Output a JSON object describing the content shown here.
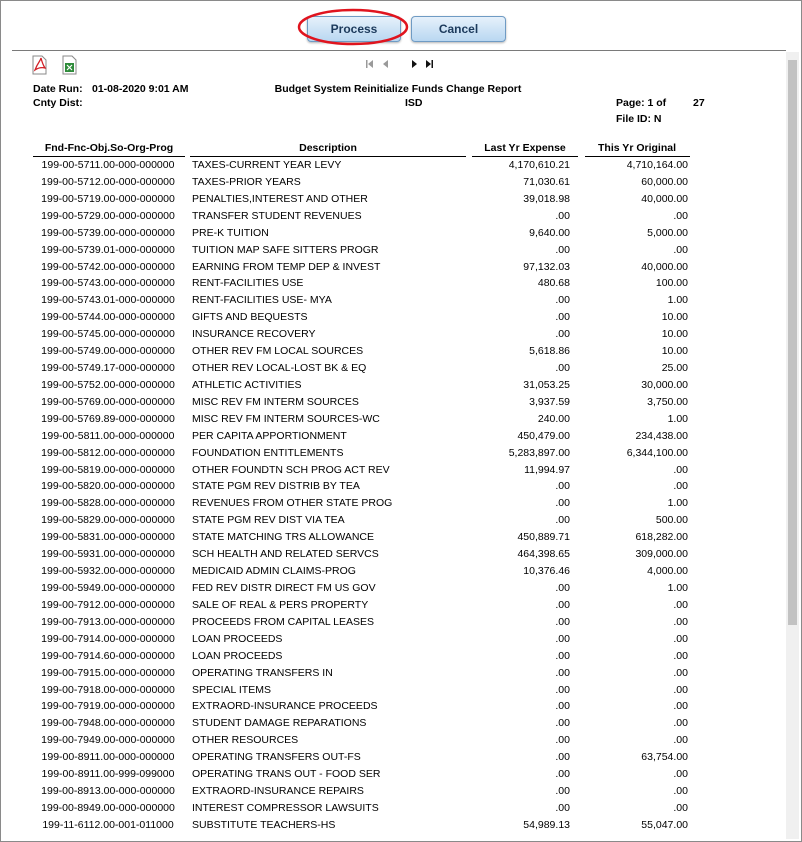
{
  "buttons": {
    "process": "Process",
    "cancel": "Cancel"
  },
  "report": {
    "date_run_label": "Date Run:",
    "date_run": "01-08-2020 9:01 AM",
    "title": "Budget System Reinitialize Funds Change Report",
    "cnty_dist_label": "Cnty Dist:",
    "district": "ISD",
    "page_label": "Page: 1 of",
    "page_total": "27",
    "file_id": "File ID: N"
  },
  "table": {
    "columns": [
      "Fnd-Fnc-Obj.So-Org-Prog",
      "Description",
      "Last Yr Expense",
      "This Yr Original"
    ],
    "rows": [
      [
        "199-00-5711.00-000-000000",
        "TAXES-CURRENT YEAR LEVY",
        "4,170,610.21",
        "4,710,164.00"
      ],
      [
        "199-00-5712.00-000-000000",
        "TAXES-PRIOR YEARS",
        "71,030.61",
        "60,000.00"
      ],
      [
        "199-00-5719.00-000-000000",
        "PENALTIES,INTEREST AND OTHER",
        "39,018.98",
        "40,000.00"
      ],
      [
        "199-00-5729.00-000-000000",
        "TRANSFER STUDENT REVENUES",
        ".00",
        ".00"
      ],
      [
        "199-00-5739.00-000-000000",
        "PRE-K TUITION",
        "9,640.00",
        "5,000.00"
      ],
      [
        "199-00-5739.01-000-000000",
        "TUITION MAP SAFE SITTERS PROGR",
        ".00",
        ".00"
      ],
      [
        "199-00-5742.00-000-000000",
        "EARNING FROM TEMP DEP & INVEST",
        "97,132.03",
        "40,000.00"
      ],
      [
        "199-00-5743.00-000-000000",
        "RENT-FACILITIES USE",
        "480.68",
        "100.00"
      ],
      [
        "199-00-5743.01-000-000000",
        "RENT-FACILITIES USE- MYA",
        ".00",
        "1.00"
      ],
      [
        "199-00-5744.00-000-000000",
        "GIFTS AND BEQUESTS",
        ".00",
        "10.00"
      ],
      [
        "199-00-5745.00-000-000000",
        "INSURANCE RECOVERY",
        ".00",
        "10.00"
      ],
      [
        "199-00-5749.00-000-000000",
        "OTHER REV FM LOCAL SOURCES",
        "5,618.86",
        "10.00"
      ],
      [
        "199-00-5749.17-000-000000",
        "OTHER REV LOCAL-LOST BK & EQ",
        ".00",
        "25.00"
      ],
      [
        "199-00-5752.00-000-000000",
        "ATHLETIC ACTIVITIES",
        "31,053.25",
        "30,000.00"
      ],
      [
        "199-00-5769.00-000-000000",
        "MISC REV FM INTERM SOURCES",
        "3,937.59",
        "3,750.00"
      ],
      [
        "199-00-5769.89-000-000000",
        "MISC REV FM INTERM SOURCES-WC",
        "240.00",
        "1.00"
      ],
      [
        "199-00-5811.00-000-000000",
        "PER CAPITA APPORTIONMENT",
        "450,479.00",
        "234,438.00"
      ],
      [
        "199-00-5812.00-000-000000",
        "FOUNDATION ENTITLEMENTS",
        "5,283,897.00",
        "6,344,100.00"
      ],
      [
        "199-00-5819.00-000-000000",
        "OTHER FOUNDTN SCH PROG ACT REV",
        "11,994.97",
        ".00"
      ],
      [
        "199-00-5820.00-000-000000",
        "STATE PGM REV DISTRIB BY TEA",
        ".00",
        ".00"
      ],
      [
        "199-00-5828.00-000-000000",
        "REVENUES FROM OTHER STATE PROG",
        ".00",
        "1.00"
      ],
      [
        "199-00-5829.00-000-000000",
        "STATE PGM REV DIST VIA TEA",
        ".00",
        "500.00"
      ],
      [
        "199-00-5831.00-000-000000",
        "STATE MATCHING TRS ALLOWANCE",
        "450,889.71",
        "618,282.00"
      ],
      [
        "199-00-5931.00-000-000000",
        "SCH HEALTH AND RELATED SERVCS",
        "464,398.65",
        "309,000.00"
      ],
      [
        "199-00-5932.00-000-000000",
        "MEDICAID ADMIN CLAIMS-PROG",
        "10,376.46",
        "4,000.00"
      ],
      [
        "199-00-5949.00-000-000000",
        "FED REV DISTR DIRECT FM US GOV",
        ".00",
        "1.00"
      ],
      [
        "199-00-7912.00-000-000000",
        "SALE OF REAL & PERS PROPERTY",
        ".00",
        ".00"
      ],
      [
        "199-00-7913.00-000-000000",
        "PROCEEDS FROM CAPITAL LEASES",
        ".00",
        ".00"
      ],
      [
        "199-00-7914.00-000-000000",
        "LOAN PROCEEDS",
        ".00",
        ".00"
      ],
      [
        "199-00-7914.60-000-000000",
        "LOAN PROCEEDS",
        ".00",
        ".00"
      ],
      [
        "199-00-7915.00-000-000000",
        "OPERATING TRANSFERS IN",
        ".00",
        ".00"
      ],
      [
        "199-00-7918.00-000-000000",
        "SPECIAL ITEMS",
        ".00",
        ".00"
      ],
      [
        "199-00-7919.00-000-000000",
        "EXTRAORD-INSURANCE PROCEEDS",
        ".00",
        ".00"
      ],
      [
        "199-00-7948.00-000-000000",
        "STUDENT DAMAGE REPARATIONS",
        ".00",
        ".00"
      ],
      [
        "199-00-7949.00-000-000000",
        "OTHER RESOURCES",
        ".00",
        ".00"
      ],
      [
        "199-00-8911.00-000-000000",
        "OPERATING TRANSFERS OUT-FS",
        ".00",
        "63,754.00"
      ],
      [
        "199-00-8911.00-999-099000",
        "OPERATING TRANS OUT - FOOD SER",
        ".00",
        ".00"
      ],
      [
        "199-00-8913.00-000-000000",
        "EXTRAORD-INSURANCE REPAIRS",
        ".00",
        ".00"
      ],
      [
        "199-00-8949.00-000-000000",
        "INTEREST COMPRESSOR LAWSUITS",
        ".00",
        ".00"
      ],
      [
        "199-11-6112.00-001-011000",
        "SUBSTITUTE TEACHERS-HS",
        "54,989.13",
        "55,047.00"
      ]
    ]
  }
}
